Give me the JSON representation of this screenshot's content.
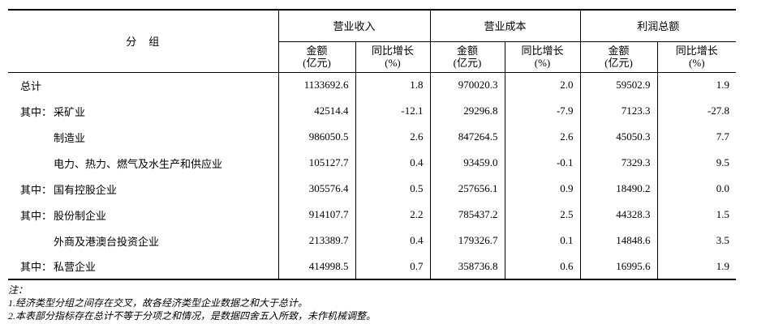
{
  "table": {
    "header": {
      "group_column_label": "分　组",
      "column_groups": [
        {
          "label": "营业收入",
          "amount_line1": "金额",
          "amount_line2": "(亿元)",
          "growth_line1": "同比增长",
          "growth_line2": "(%)"
        },
        {
          "label": "营业成本",
          "amount_line1": "金额",
          "amount_line2": "(亿元)",
          "growth_line1": "同比增长",
          "growth_line2": "(%)"
        },
        {
          "label": "利润总额",
          "amount_line1": "金额",
          "amount_line2": "(亿元)",
          "growth_line1": "同比增长",
          "growth_line2": "(%)"
        }
      ]
    },
    "rows": [
      {
        "prefix": "",
        "name": "总计",
        "values": [
          "1133692.6",
          "1.8",
          "970020.3",
          "2.0",
          "59502.9",
          "1.9"
        ]
      },
      {
        "prefix": "其中：",
        "name": "采矿业",
        "values": [
          "42514.4",
          "-12.1",
          "29296.8",
          "-7.9",
          "7123.3",
          "-27.8"
        ]
      },
      {
        "prefix": "",
        "name": "制造业",
        "values": [
          "986050.5",
          "2.6",
          "847264.5",
          "2.6",
          "45050.3",
          "7.7"
        ]
      },
      {
        "prefix": "",
        "name": "电力、热力、燃气及水生产和供应业",
        "values": [
          "105127.7",
          "0.4",
          "93459.0",
          "-0.1",
          "7329.3",
          "9.5"
        ]
      },
      {
        "prefix": "其中：",
        "name": "国有控股企业",
        "values": [
          "305576.4",
          "0.5",
          "257656.1",
          "0.9",
          "18490.2",
          "0.0"
        ]
      },
      {
        "prefix": "其中：",
        "name": "股份制企业",
        "values": [
          "914107.7",
          "2.2",
          "785437.2",
          "2.5",
          "44328.3",
          "1.5"
        ]
      },
      {
        "prefix": "",
        "name": "外商及港澳台投资企业",
        "values": [
          "213389.7",
          "0.4",
          "179326.7",
          "0.1",
          "14848.6",
          "3.5"
        ]
      },
      {
        "prefix": "其中：",
        "name": "私营企业",
        "values": [
          "414998.5",
          "0.7",
          "358736.8",
          "0.6",
          "16995.6",
          "1.9"
        ]
      }
    ]
  },
  "notes": {
    "title": "注：",
    "items": [
      "1.经济类型分组之间存在交叉，故各经济类型企业数据之和大于总计。",
      "2.本表部分指标存在总计不等于分项之和情况，是数据四舍五入所致，未作机械调整。"
    ]
  }
}
